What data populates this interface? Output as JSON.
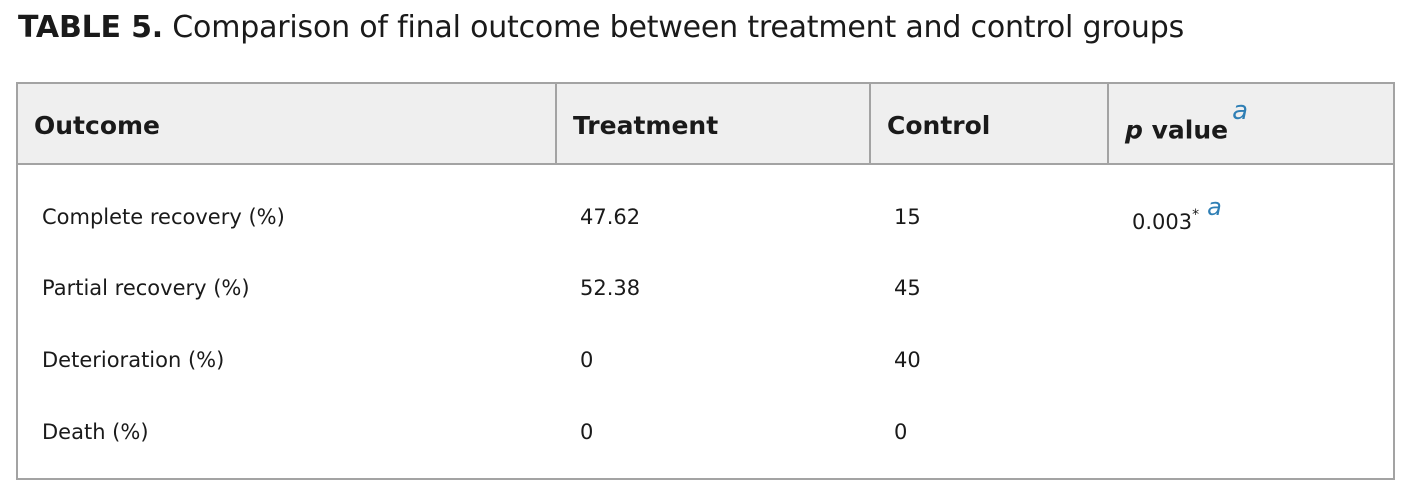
{
  "caption": {
    "label": "TABLE 5.",
    "text": "Comparison of final outcome between treatment and control groups"
  },
  "table": {
    "headers": {
      "outcome": "Outcome",
      "treatment": "Treatment",
      "control": "Control",
      "p_value_italic": "p",
      "p_value_rest": " value",
      "p_value_note": "a"
    },
    "rows": [
      {
        "outcome": "Complete recovery (%)",
        "treatment": "47.62",
        "control": "15",
        "p_value": "0.003",
        "p_value_mark": "*",
        "p_value_note": "a"
      },
      {
        "outcome": "Partial recovery (%)",
        "treatment": "52.38",
        "control": "45"
      },
      {
        "outcome": "Deterioration (%)",
        "treatment": "0",
        "control": "40"
      },
      {
        "outcome": "Death (%)",
        "treatment": "0",
        "control": "0"
      }
    ]
  },
  "colors": {
    "header_bg": "#efefef",
    "border": "#a3a3a3",
    "footnote_link": "#2f7fb5"
  }
}
